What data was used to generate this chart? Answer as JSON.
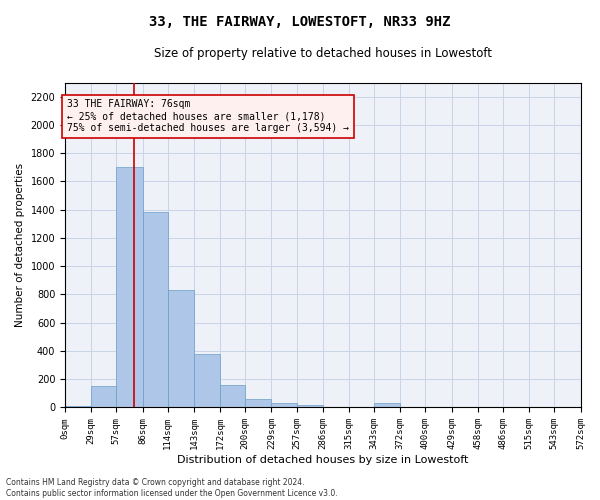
{
  "title": "33, THE FAIRWAY, LOWESTOFT, NR33 9HZ",
  "subtitle": "Size of property relative to detached houses in Lowestoft",
  "xlabel": "Distribution of detached houses by size in Lowestoft",
  "ylabel": "Number of detached properties",
  "bar_color": "#aec6e8",
  "bar_edge_color": "#6a9ec8",
  "grid_color": "#c8d4e8",
  "background_color": "#eef2f8",
  "annotation_line_color": "#cc0000",
  "annotation_box_color": "#fff0f0",
  "annotation_box_edge": "#cc0000",
  "annotation_line1": "33 THE FAIRWAY: 76sqm",
  "annotation_line2": "← 25% of detached houses are smaller (1,178)",
  "annotation_line3": "75% of semi-detached houses are larger (3,594) →",
  "property_sqm": 76,
  "footer_text": "Contains HM Land Registry data © Crown copyright and database right 2024.\nContains public sector information licensed under the Open Government Licence v3.0.",
  "bin_edges": [
    0,
    29,
    57,
    86,
    114,
    143,
    172,
    200,
    229,
    257,
    286,
    315,
    343,
    372,
    400,
    429,
    458,
    486,
    515,
    543,
    572
  ],
  "bar_heights": [
    10,
    150,
    1700,
    1380,
    830,
    380,
    160,
    60,
    30,
    20,
    0,
    0,
    30,
    0,
    0,
    0,
    0,
    0,
    0,
    0
  ],
  "ylim": [
    0,
    2300
  ],
  "yticks": [
    0,
    200,
    400,
    600,
    800,
    1000,
    1200,
    1400,
    1600,
    1800,
    2000,
    2200
  ],
  "title_fontsize": 10,
  "subtitle_fontsize": 8.5,
  "xlabel_fontsize": 8,
  "ylabel_fontsize": 7.5,
  "tick_fontsize": 6.5,
  "ytick_fontsize": 7,
  "annotation_fontsize": 7,
  "footer_fontsize": 5.5
}
